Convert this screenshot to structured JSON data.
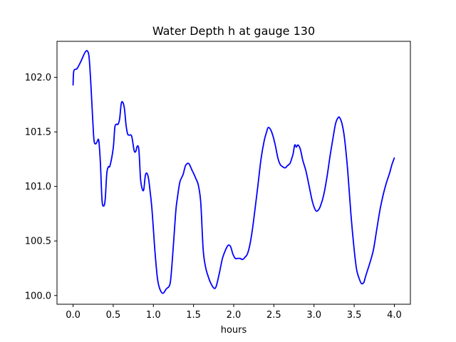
{
  "chart_data": {
    "type": "line",
    "title": "Water Depth h at gauge 130",
    "xlabel": "hours",
    "ylabel": "",
    "xlim": [
      -0.2,
      4.2
    ],
    "ylim": [
      99.92,
      102.33
    ],
    "xticks": [
      0.0,
      0.5,
      1.0,
      1.5,
      2.0,
      2.5,
      3.0,
      3.5,
      4.0
    ],
    "xtick_labels": [
      "0.0",
      "0.5",
      "1.0",
      "1.5",
      "2.0",
      "2.5",
      "3.0",
      "3.5",
      "4.0"
    ],
    "yticks": [
      100.0,
      100.5,
      101.0,
      101.5,
      102.0
    ],
    "ytick_labels": [
      "100.0",
      "100.5",
      "101.0",
      "101.5",
      "102.0"
    ],
    "grid": false,
    "line_color": "#0000ff",
    "series": [
      {
        "name": "",
        "x": [
          0.0,
          0.01,
          0.05,
          0.1,
          0.15,
          0.18,
          0.2,
          0.22,
          0.24,
          0.26,
          0.28,
          0.3,
          0.32,
          0.34,
          0.36,
          0.38,
          0.4,
          0.42,
          0.44,
          0.46,
          0.5,
          0.52,
          0.54,
          0.56,
          0.58,
          0.6,
          0.62,
          0.64,
          0.66,
          0.68,
          0.7,
          0.73,
          0.76,
          0.78,
          0.8,
          0.82,
          0.84,
          0.86,
          0.88,
          0.9,
          0.92,
          0.94,
          0.96,
          0.98,
          1.0,
          1.02,
          1.05,
          1.08,
          1.12,
          1.16,
          1.2,
          1.22,
          1.25,
          1.28,
          1.3,
          1.33,
          1.37,
          1.4,
          1.44,
          1.48,
          1.5,
          1.53,
          1.56,
          1.59,
          1.62,
          1.65,
          1.68,
          1.71,
          1.75,
          1.78,
          1.82,
          1.86,
          1.9,
          1.93,
          1.96,
          1.99,
          2.02,
          2.05,
          2.08,
          2.11,
          2.14,
          2.17,
          2.2,
          2.23,
          2.26,
          2.3,
          2.34,
          2.38,
          2.41,
          2.43,
          2.46,
          2.49,
          2.52,
          2.55,
          2.58,
          2.61,
          2.64,
          2.67,
          2.7,
          2.72,
          2.74,
          2.76,
          2.78,
          2.8,
          2.83,
          2.86,
          2.9,
          2.94,
          2.98,
          3.02,
          3.05,
          3.08,
          3.12,
          3.16,
          3.2,
          3.24,
          3.27,
          3.3,
          3.32,
          3.35,
          3.38,
          3.42,
          3.46,
          3.5,
          3.53,
          3.56,
          3.59,
          3.62,
          3.64,
          3.67,
          3.7,
          3.74,
          3.78,
          3.82,
          3.86,
          3.9,
          3.94,
          3.97,
          4.0
        ],
        "values": [
          101.93,
          102.06,
          102.08,
          102.15,
          102.23,
          102.24,
          102.18,
          101.96,
          101.68,
          101.43,
          101.39,
          101.41,
          101.42,
          101.22,
          100.88,
          100.82,
          100.88,
          101.12,
          101.18,
          101.19,
          101.35,
          101.54,
          101.57,
          101.57,
          101.62,
          101.76,
          101.77,
          101.71,
          101.56,
          101.48,
          101.47,
          101.46,
          101.33,
          101.32,
          101.37,
          101.33,
          101.07,
          100.98,
          100.97,
          101.1,
          101.12,
          101.07,
          100.95,
          100.81,
          100.61,
          100.4,
          100.16,
          100.06,
          100.02,
          100.06,
          100.09,
          100.18,
          100.47,
          100.78,
          100.9,
          101.04,
          101.11,
          101.19,
          101.21,
          101.15,
          101.12,
          101.07,
          101.01,
          100.85,
          100.42,
          100.26,
          100.18,
          100.12,
          100.07,
          100.08,
          100.2,
          100.34,
          100.42,
          100.46,
          100.45,
          100.38,
          100.34,
          100.34,
          100.34,
          100.33,
          100.35,
          100.38,
          100.46,
          100.59,
          100.76,
          101.0,
          101.25,
          101.42,
          101.5,
          101.54,
          101.52,
          101.46,
          101.37,
          101.26,
          101.2,
          101.18,
          101.17,
          101.19,
          101.21,
          101.25,
          101.3,
          101.38,
          101.36,
          101.38,
          101.34,
          101.24,
          101.14,
          101.0,
          100.86,
          100.78,
          100.78,
          100.82,
          100.92,
          101.08,
          101.28,
          101.46,
          101.58,
          101.63,
          101.63,
          101.57,
          101.44,
          101.14,
          100.74,
          100.42,
          100.24,
          100.16,
          100.11,
          100.12,
          100.17,
          100.24,
          100.31,
          100.42,
          100.6,
          100.78,
          100.92,
          101.03,
          101.12,
          101.2,
          101.26
        ]
      }
    ]
  }
}
